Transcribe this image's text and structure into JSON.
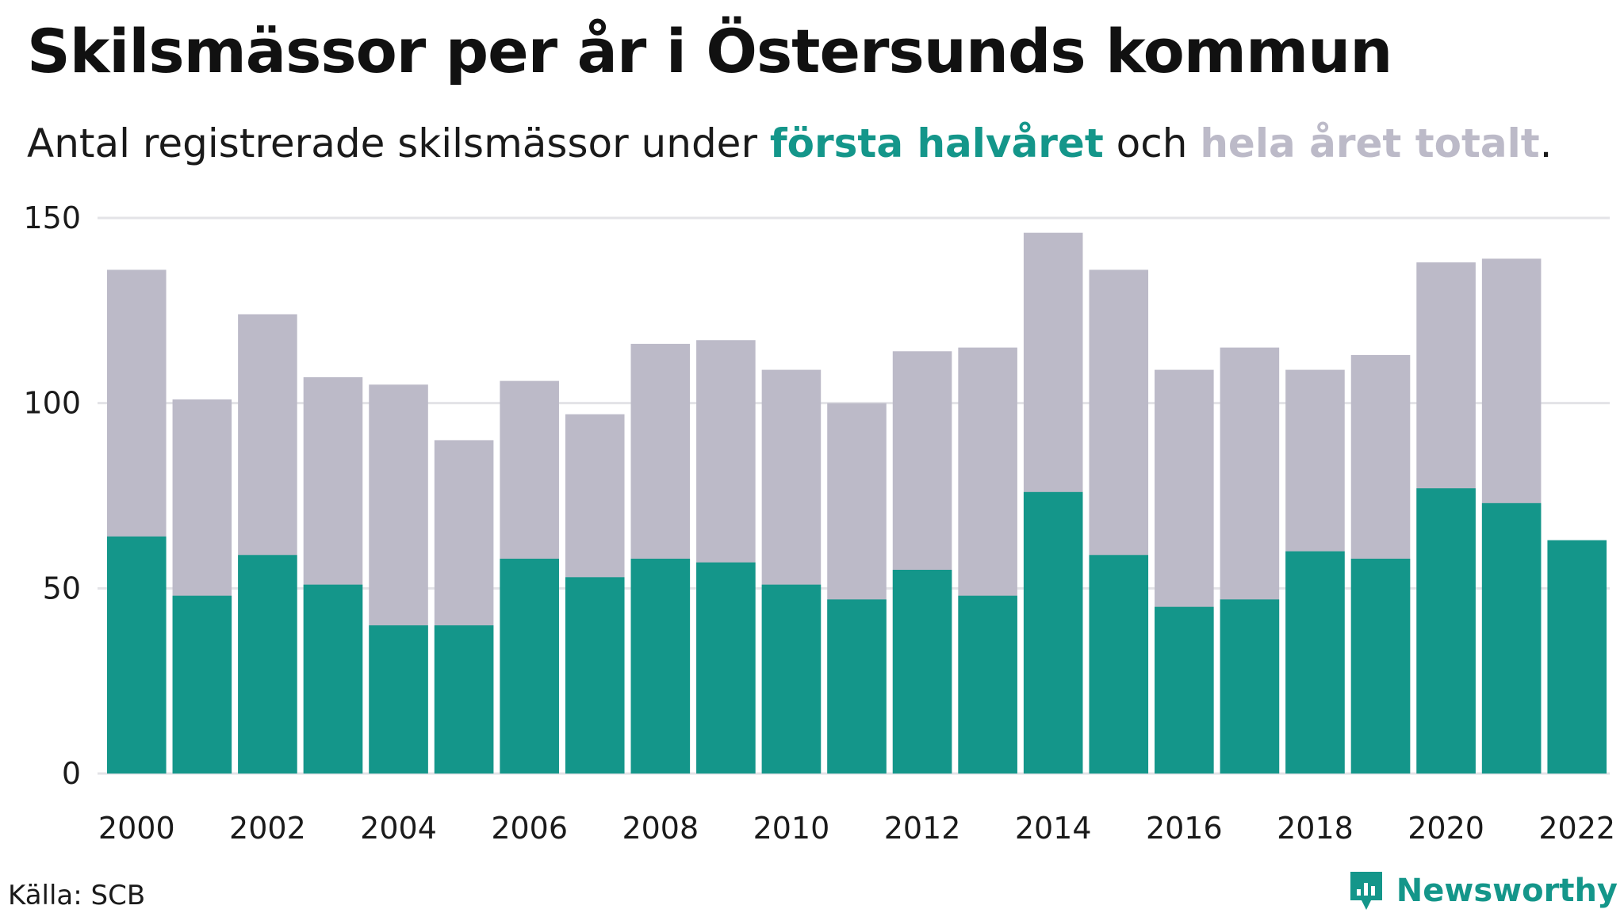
{
  "title": "Skilsmässor per år i Östersunds kommun",
  "subtitle": {
    "prefix": "Antal registrerade skilsmässor under ",
    "highlight_half": "första halvåret",
    "middle": " och ",
    "highlight_total": "hela året totalt",
    "suffix": "."
  },
  "source": "Källa: SCB",
  "brand": "Newsworthy",
  "colors": {
    "first_half": "#14968a",
    "full_year": "#bcbac8",
    "grid": "#e3e3e7"
  },
  "chart_data": {
    "type": "bar",
    "categories": [
      2000,
      2001,
      2002,
      2003,
      2004,
      2005,
      2006,
      2007,
      2008,
      2009,
      2010,
      2011,
      2012,
      2013,
      2014,
      2015,
      2016,
      2017,
      2018,
      2019,
      2020,
      2021,
      2022
    ],
    "x_tick_labels": [
      "2000",
      "2002",
      "2004",
      "2006",
      "2008",
      "2010",
      "2012",
      "2014",
      "2016",
      "2018",
      "2020",
      "2022"
    ],
    "y_ticks": [
      0,
      50,
      100,
      150
    ],
    "ylim": [
      0,
      150
    ],
    "grid": true,
    "series": [
      {
        "name": "hela året totalt",
        "values": [
          136,
          101,
          124,
          107,
          105,
          90,
          106,
          97,
          116,
          117,
          109,
          100,
          114,
          115,
          146,
          136,
          109,
          115,
          109,
          113,
          138,
          139,
          null
        ]
      },
      {
        "name": "första halvåret",
        "values": [
          64,
          48,
          59,
          51,
          40,
          40,
          58,
          53,
          58,
          57,
          51,
          47,
          55,
          48,
          76,
          59,
          45,
          47,
          60,
          58,
          77,
          73,
          63
        ]
      }
    ]
  }
}
